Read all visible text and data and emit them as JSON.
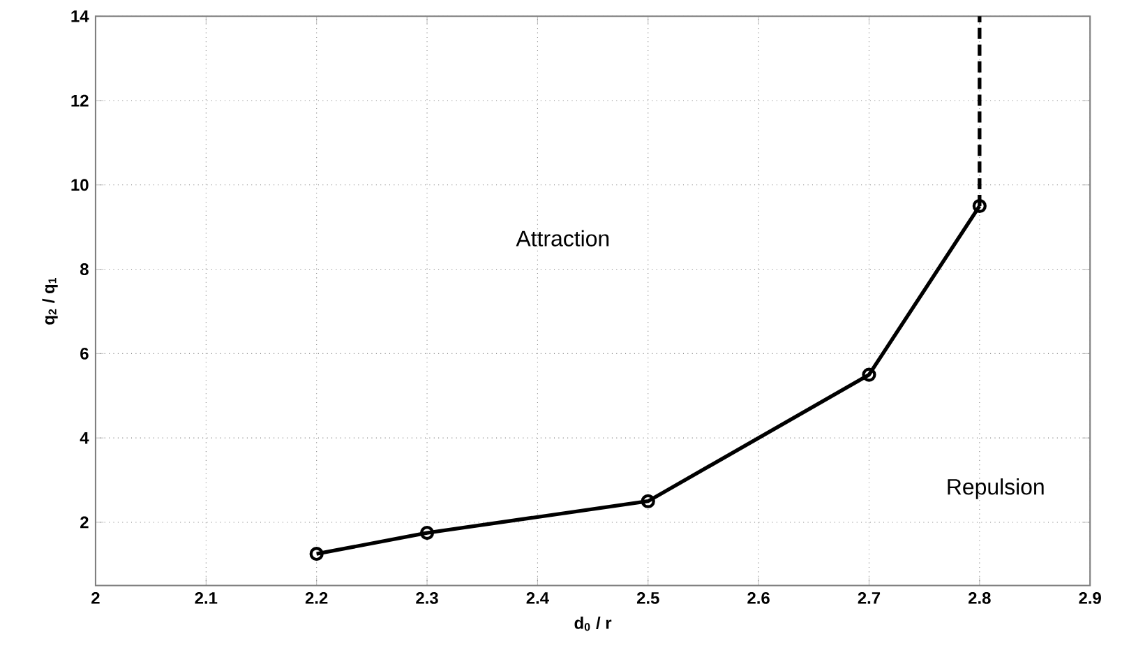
{
  "chart_data": {
    "type": "line",
    "xlabel": "d$_{0}$ / r",
    "ylabel": "q$_{2}$ / q$_{1}$",
    "x": [
      2.2,
      2.3,
      2.5,
      2.7,
      2.8
    ],
    "series": [
      {
        "color": "#000000",
        "values": [
          1.25,
          1.75,
          2.5,
          5.5,
          9.5
        ],
        "marker": "circle",
        "line_style": "solid"
      },
      {
        "color": "#000000",
        "x": [
          2.8,
          2.8
        ],
        "values": [
          9.5,
          14
        ],
        "marker": "none",
        "line_style": "dashed"
      }
    ],
    "annotations": [
      "Attraction",
      "Repulsion"
    ],
    "xlim": [
      2,
      2.9
    ],
    "ylim": [
      0.5,
      14
    ],
    "xticks": [
      2,
      2.1,
      2.2,
      2.3,
      2.4,
      2.5,
      2.6,
      2.7,
      2.8,
      2.9
    ],
    "yticks": [
      2,
      4,
      6,
      8,
      10,
      12,
      14
    ],
    "grid": true
  }
}
